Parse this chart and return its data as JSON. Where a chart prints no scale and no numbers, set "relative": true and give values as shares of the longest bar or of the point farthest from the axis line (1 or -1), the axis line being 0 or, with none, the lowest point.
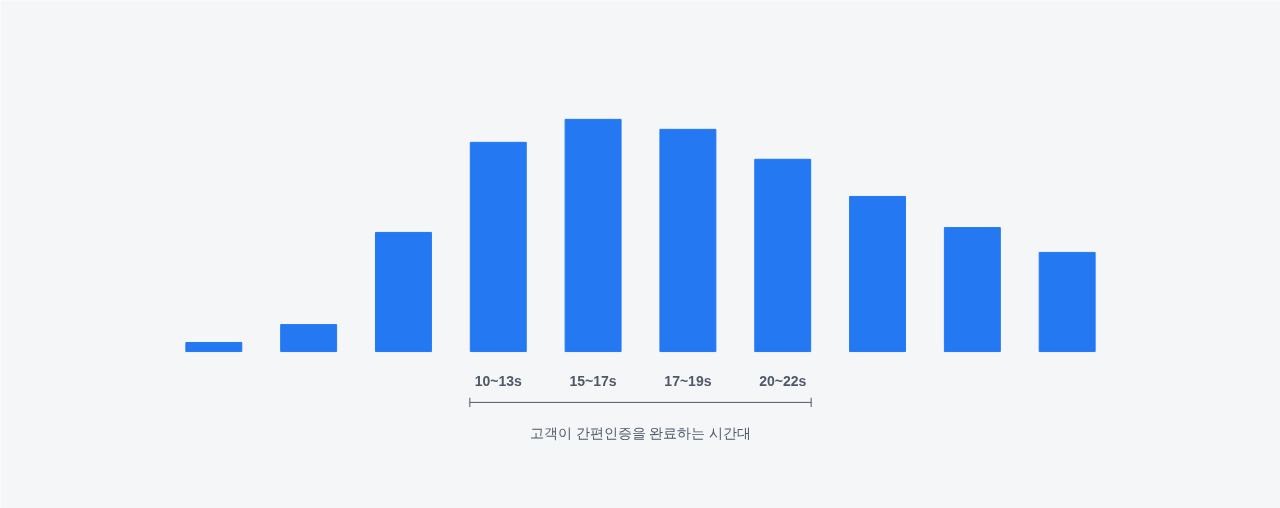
{
  "chart_data": {
    "type": "bar",
    "relative": true,
    "categories": [
      null,
      null,
      null,
      "10~13s",
      "15~17s",
      "17~19s",
      "20~22s",
      null,
      null,
      null
    ],
    "values": [
      0.039,
      0.116,
      0.513,
      0.901,
      1,
      0.957,
      0.828,
      0.668,
      0.534,
      0.427
    ],
    "color": "#2479f2",
    "annotations": [
      "고객이 간편인증을 완료하는 시간대"
    ],
    "grid": false
  }
}
